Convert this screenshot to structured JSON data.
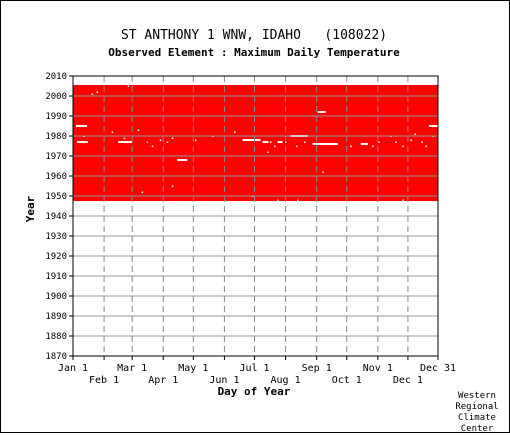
{
  "chart_data": {
    "type": "scatter",
    "title": "ST ANTHONY 1 WNW, IDAHO   (108022)",
    "subtitle": "Observed Element : Maximum Daily Temperature",
    "xlabel": "Day of Year",
    "ylabel": "Year",
    "xlim": [
      1,
      365
    ],
    "ylim": [
      1870,
      2010
    ],
    "y_ticks": [
      1870,
      1880,
      1890,
      1900,
      1910,
      1920,
      1930,
      1940,
      1950,
      1960,
      1970,
      1980,
      1990,
      2000,
      2010
    ],
    "x_ticks_top": [
      {
        "label": "Jan 1",
        "day": 1
      },
      {
        "label": "Mar 1",
        "day": 60
      },
      {
        "label": "May 1",
        "day": 121
      },
      {
        "label": "Jul 1",
        "day": 182
      },
      {
        "label": "Sep 1",
        "day": 244
      },
      {
        "label": "Nov 1",
        "day": 305
      },
      {
        "label": "Dec 31",
        "day": 365
      }
    ],
    "x_ticks_bottom": [
      {
        "label": "Feb 1",
        "day": 32
      },
      {
        "label": "Apr 1",
        "day": 91
      },
      {
        "label": "Jun 1",
        "day": 152
      },
      {
        "label": "Aug 1",
        "day": 213
      },
      {
        "label": "Oct 1",
        "day": 274
      },
      {
        "label": "Dec 1",
        "day": 335
      }
    ],
    "grid": true,
    "series_color": "#ff0000",
    "observed_block": {
      "day_start": 1,
      "day_end": 365,
      "year_start": 1948,
      "year_end": 2005
    },
    "missing_segments": [
      {
        "year": 1985,
        "day_start": 4,
        "day_end": 15
      },
      {
        "year": 1977,
        "day_start": 5,
        "day_end": 16
      },
      {
        "year": 1977,
        "day_start": 46,
        "day_end": 60
      },
      {
        "year": 1968,
        "day_start": 105,
        "day_end": 115
      },
      {
        "year": 1978,
        "day_start": 170,
        "day_end": 188
      },
      {
        "year": 1980,
        "day_start": 218,
        "day_end": 235
      },
      {
        "year": 1976,
        "day_start": 240,
        "day_end": 265
      },
      {
        "year": 1992,
        "day_start": 245,
        "day_end": 253
      },
      {
        "year": 1976,
        "day_start": 288,
        "day_end": 295
      },
      {
        "year": 1985,
        "day_start": 356,
        "day_end": 365
      },
      {
        "year": 1977,
        "day_start": 190,
        "day_end": 196
      },
      {
        "year": 1977,
        "day_start": 205,
        "day_end": 210
      }
    ],
    "missing_points": [
      [
        12,
        1980
      ],
      [
        40,
        1982
      ],
      [
        52,
        1979
      ],
      [
        66,
        1983
      ],
      [
        75,
        1977
      ],
      [
        80,
        1975
      ],
      [
        88,
        1978
      ],
      [
        95,
        1977
      ],
      [
        100,
        1979
      ],
      [
        123,
        1978
      ],
      [
        140,
        1980
      ],
      [
        162,
        1982
      ],
      [
        198,
        1977
      ],
      [
        202,
        1975
      ],
      [
        213,
        1977
      ],
      [
        224,
        1975
      ],
      [
        232,
        1977
      ],
      [
        260,
        1976
      ],
      [
        278,
        1975
      ],
      [
        300,
        1975
      ],
      [
        306,
        1977
      ],
      [
        318,
        1980
      ],
      [
        323,
        1977
      ],
      [
        330,
        1975
      ],
      [
        338,
        1978
      ],
      [
        342,
        1981
      ],
      [
        349,
        1977
      ],
      [
        353,
        1975
      ],
      [
        360,
        1980
      ],
      [
        25,
        2002
      ],
      [
        20,
        2001
      ],
      [
        56,
        2005
      ],
      [
        205,
        1948
      ],
      [
        225,
        1948
      ],
      [
        330,
        1948
      ],
      [
        70,
        1952
      ],
      [
        180,
        1950
      ],
      [
        195,
        1972
      ],
      [
        250,
        1962
      ],
      [
        100,
        1955
      ]
    ]
  },
  "footer": {
    "line1": "Western",
    "line2": "Regional",
    "line3": "Climate",
    "line4": "Center"
  }
}
